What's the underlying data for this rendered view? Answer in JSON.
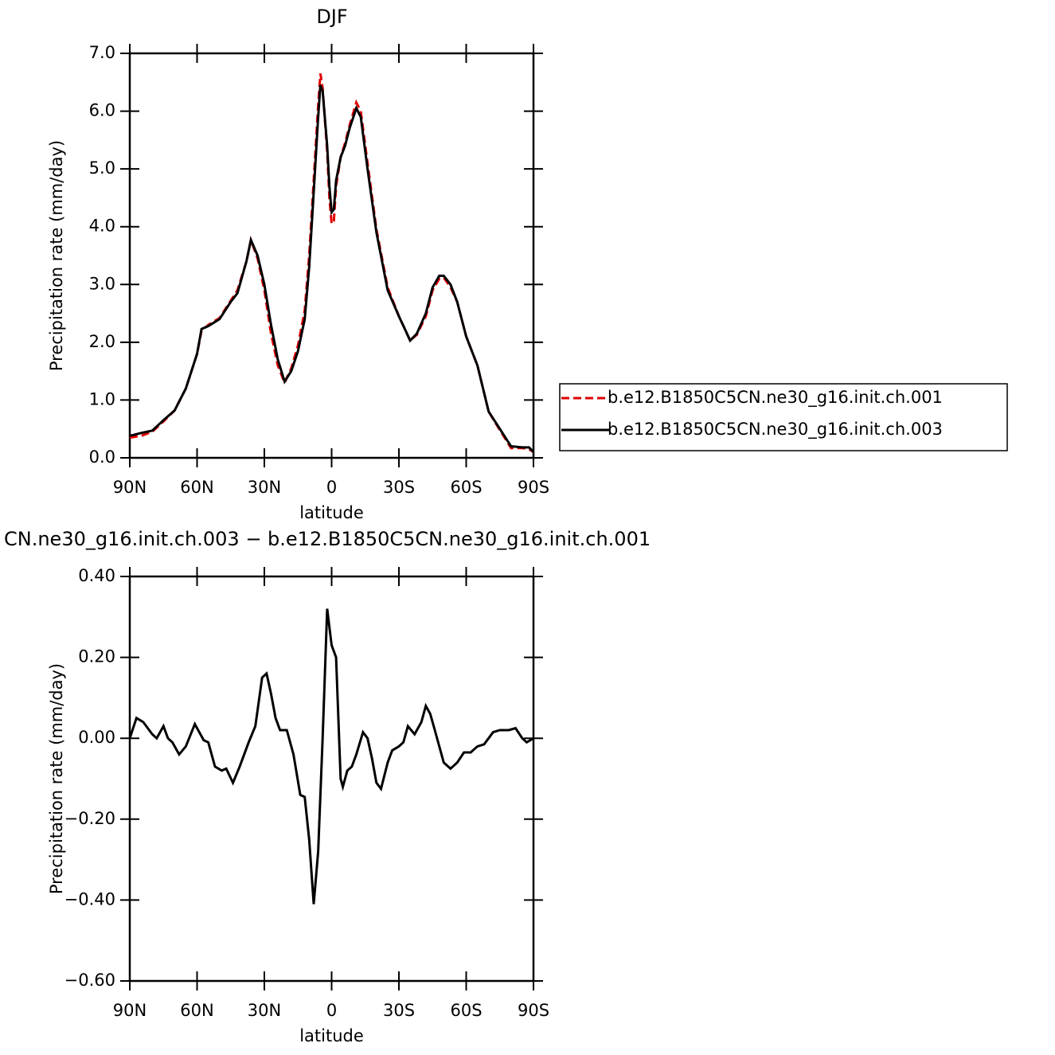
{
  "chart_data": [
    {
      "type": "line",
      "title": "DJF",
      "xlabel": "latitude",
      "ylabel": "Precipitation rate (mm/day)",
      "x": [
        90,
        85,
        80,
        75,
        70,
        65,
        60,
        58,
        55,
        50,
        45,
        42,
        38,
        36,
        33,
        30,
        27,
        24,
        21,
        18,
        15,
        12,
        10,
        8,
        6,
        5,
        4,
        2,
        1,
        0,
        -1,
        -2,
        -4,
        -6,
        -8,
        -11,
        -13,
        -16,
        -20,
        -25,
        -30,
        -33,
        -35,
        -38,
        -42,
        -45,
        -48,
        -50,
        -53,
        -56,
        -60,
        -65,
        -70,
        -75,
        -80,
        -85,
        -88,
        -90
      ],
      "series": [
        {
          "name": "b.e12.B1850C5CN.ne30_g16.init.ch.001",
          "color": "#e00000",
          "dash": true,
          "values": [
            0.35,
            0.38,
            0.45,
            0.63,
            0.82,
            1.2,
            1.8,
            2.2,
            2.3,
            2.42,
            2.72,
            2.9,
            3.4,
            3.77,
            3.45,
            2.9,
            2.15,
            1.6,
            1.3,
            1.55,
            1.95,
            2.55,
            3.5,
            4.8,
            6.1,
            6.65,
            6.4,
            5.3,
            4.5,
            4.05,
            4.1,
            4.7,
            5.2,
            5.45,
            5.75,
            6.15,
            6.0,
            5.1,
            3.95,
            2.95,
            2.45,
            2.2,
            2.03,
            2.13,
            2.45,
            2.9,
            3.1,
            3.12,
            2.95,
            2.7,
            2.1,
            1.6,
            0.8,
            0.48,
            0.17,
            0.17,
            0.15,
            0.1
          ]
        },
        {
          "name": "b.e12.B1850C5CN.ne30_g16.init.ch.003",
          "color": "#000000",
          "dash": false,
          "values": [
            0.38,
            0.43,
            0.47,
            0.65,
            0.82,
            1.2,
            1.8,
            2.23,
            2.28,
            2.4,
            2.7,
            2.85,
            3.4,
            3.77,
            3.5,
            3.0,
            2.3,
            1.7,
            1.32,
            1.5,
            1.85,
            2.4,
            3.3,
            4.6,
            5.9,
            6.45,
            6.35,
            5.4,
            4.7,
            4.25,
            4.3,
            4.8,
            5.2,
            5.4,
            5.7,
            6.05,
            5.9,
            5.0,
            3.9,
            2.9,
            2.45,
            2.2,
            2.03,
            2.15,
            2.5,
            2.95,
            3.15,
            3.15,
            3.0,
            2.7,
            2.1,
            1.6,
            0.8,
            0.5,
            0.2,
            0.18,
            0.18,
            0.1
          ]
        }
      ],
      "xlim": [
        90,
        -90
      ],
      "xticks": [
        {
          "value": 90,
          "label": "90N"
        },
        {
          "value": 60,
          "label": "60N"
        },
        {
          "value": 30,
          "label": "30N"
        },
        0,
        {
          "value": -30,
          "label": "30S"
        },
        {
          "value": -60,
          "label": "60S"
        },
        {
          "value": -90,
          "label": "90S"
        }
      ],
      "ylim": [
        0,
        7
      ],
      "yticks": [
        {
          "value": 0,
          "label": "0.0"
        },
        {
          "value": 1,
          "label": "1.0"
        },
        {
          "value": 2,
          "label": "2.0"
        },
        {
          "value": 3,
          "label": "3.0"
        },
        {
          "value": 4,
          "label": "4.0"
        },
        {
          "value": 5,
          "label": "5.0"
        },
        {
          "value": 6,
          "label": "6.0"
        },
        {
          "value": 7,
          "label": "7.0"
        }
      ],
      "legend": "right"
    },
    {
      "type": "line",
      "title": "CN.ne30_g16.init.ch.003 − b.e12.B1850C5CN.ne30_g16.init.ch.001",
      "xlabel": "latitude",
      "ylabel": "Precipitation rate (mm/day)",
      "x": [
        90,
        87,
        84,
        80,
        78,
        75,
        73,
        71,
        68,
        65,
        61,
        59,
        57,
        55,
        52,
        49,
        47,
        44,
        41,
        37,
        34,
        31,
        29,
        27,
        25,
        23,
        20,
        17,
        14,
        12,
        10,
        8,
        6,
        4,
        2,
        0,
        -2,
        -4,
        -5,
        -7,
        -9,
        -11,
        -14,
        -16,
        -18,
        -20,
        -22,
        -25,
        -27,
        -30,
        -32,
        -34,
        -37,
        -40,
        -42,
        -44,
        -46,
        -50,
        -53,
        -56,
        -59,
        -62,
        -65,
        -68,
        -72,
        -75,
        -79,
        -82,
        -85,
        -87,
        -90
      ],
      "series": [
        {
          "color": "#000000",
          "dash": false,
          "values": [
            0.0,
            0.05,
            0.04,
            0.01,
            0.0,
            0.03,
            0.0,
            -0.01,
            -0.04,
            -0.02,
            0.035,
            0.015,
            -0.005,
            -0.01,
            -0.07,
            -0.08,
            -0.075,
            -0.11,
            -0.07,
            -0.01,
            0.03,
            0.15,
            0.16,
            0.11,
            0.05,
            0.02,
            0.02,
            -0.04,
            -0.14,
            -0.145,
            -0.25,
            -0.41,
            -0.28,
            0.0,
            0.32,
            0.23,
            0.2,
            -0.1,
            -0.12,
            -0.08,
            -0.07,
            -0.04,
            0.015,
            0.0,
            -0.05,
            -0.11,
            -0.125,
            -0.06,
            -0.03,
            -0.02,
            -0.01,
            0.03,
            0.01,
            0.04,
            0.08,
            0.06,
            0.02,
            -0.06,
            -0.075,
            -0.06,
            -0.035,
            -0.035,
            -0.02,
            -0.015,
            0.015,
            0.02,
            0.02,
            0.025,
            0.0,
            -0.01,
            0.0
          ]
        }
      ],
      "xlim": [
        90,
        -90
      ],
      "xticks": [
        {
          "value": 90,
          "label": "90N"
        },
        {
          "value": 60,
          "label": "60N"
        },
        {
          "value": 30,
          "label": "30N"
        },
        0,
        {
          "value": -30,
          "label": "30S"
        },
        {
          "value": -60,
          "label": "60S"
        },
        {
          "value": -90,
          "label": "90S"
        }
      ],
      "ylim": [
        -0.6,
        0.4
      ],
      "yticks": [
        {
          "value": -0.6,
          "label": "−0.60"
        },
        {
          "value": -0.4,
          "label": "−0.40"
        },
        {
          "value": -0.2,
          "label": "−0.20"
        },
        {
          "value": 0,
          "label": "0.00"
        },
        {
          "value": 0.2,
          "label": "0.20"
        },
        {
          "value": 0.4,
          "label": "0.40"
        }
      ]
    }
  ]
}
